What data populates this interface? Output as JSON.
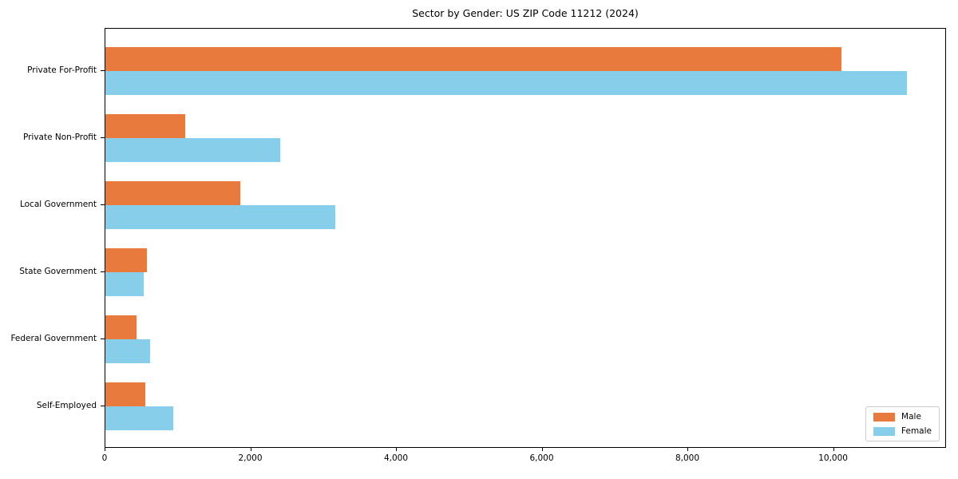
{
  "chart_data": {
    "type": "bar",
    "orientation": "horizontal",
    "title": "Sector by Gender: US ZIP Code 11212 (2024)",
    "categories": [
      "Private For-Profit",
      "Private Non-Profit",
      "Local Government",
      "State Government",
      "Federal Government",
      "Self-Employed"
    ],
    "series": [
      {
        "name": "Male",
        "color": "#e87a3e",
        "values": [
          10100,
          1090,
          1850,
          570,
          430,
          550
        ]
      },
      {
        "name": "Female",
        "color": "#87ceeb",
        "values": [
          11000,
          2400,
          3150,
          530,
          610,
          930
        ]
      }
    ],
    "xlabel": "",
    "ylabel": "",
    "xlim": [
      0,
      11550
    ],
    "xticks": [
      0,
      2000,
      4000,
      6000,
      8000,
      10000
    ],
    "xtick_labels": [
      "0",
      "2,000",
      "4,000",
      "6,000",
      "8,000",
      "10,000"
    ],
    "grid": false,
    "legend": {
      "position": "lower right",
      "labels": [
        "Male",
        "Female"
      ]
    },
    "colors": {
      "male": "#e87a3e",
      "female": "#87ceeb",
      "spine": "#000000",
      "legend_border": "#cccccc",
      "background": "#ffffff",
      "text": "#000000"
    }
  }
}
